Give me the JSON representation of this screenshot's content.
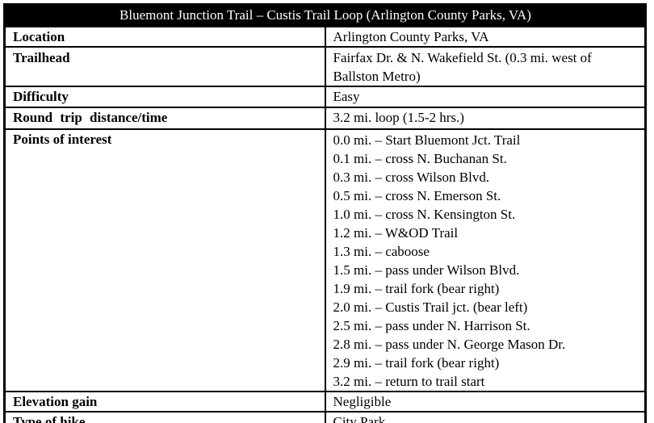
{
  "title": "Bluemont Junction Trail – Custis Trail Loop (Arlington County Parks, VA)",
  "colors": {
    "header_bg": "#000000",
    "header_text": "#ffffff",
    "border": "#000000",
    "page_bg": "#ffffff",
    "body_text": "#000000"
  },
  "rows": [
    {
      "label": "Location",
      "value": "Arlington County Parks, VA"
    },
    {
      "label": "Trailhead",
      "value": "Fairfax Dr. & N. Wakefield St. (0.3 mi. west of Ballston Metro)"
    },
    {
      "label": "Difficulty",
      "value": "Easy"
    },
    {
      "label": "Round trip distance/time",
      "value": "3.2 mi. loop (1.5-2 hrs.)"
    },
    {
      "label": "Points of interest",
      "lines": [
        "0.0 mi. – Start Bluemont Jct. Trail",
        "0.1 mi. – cross N. Buchanan St.",
        "0.3 mi. – cross Wilson Blvd.",
        "0.5 mi. – cross N. Emerson St.",
        "1.0 mi. – cross N. Kensington St.",
        "1.2 mi. – W&OD Trail",
        "1.3 mi. – caboose",
        "1.5 mi. – pass under Wilson Blvd.",
        "1.9 mi. – trail fork (bear right)",
        "2.0 mi. – Custis Trail jct. (bear left)",
        "2.5 mi. – pass under N. Harrison St.",
        "2.8 mi. – pass under N. George Mason Dr.",
        "2.9 mi. – trail fork (bear right)",
        "3.2 mi. – return to trail start"
      ]
    },
    {
      "label": "Elevation gain",
      "value": "Negligible"
    },
    {
      "label": "Type of hike",
      "value": "City Park"
    }
  ]
}
